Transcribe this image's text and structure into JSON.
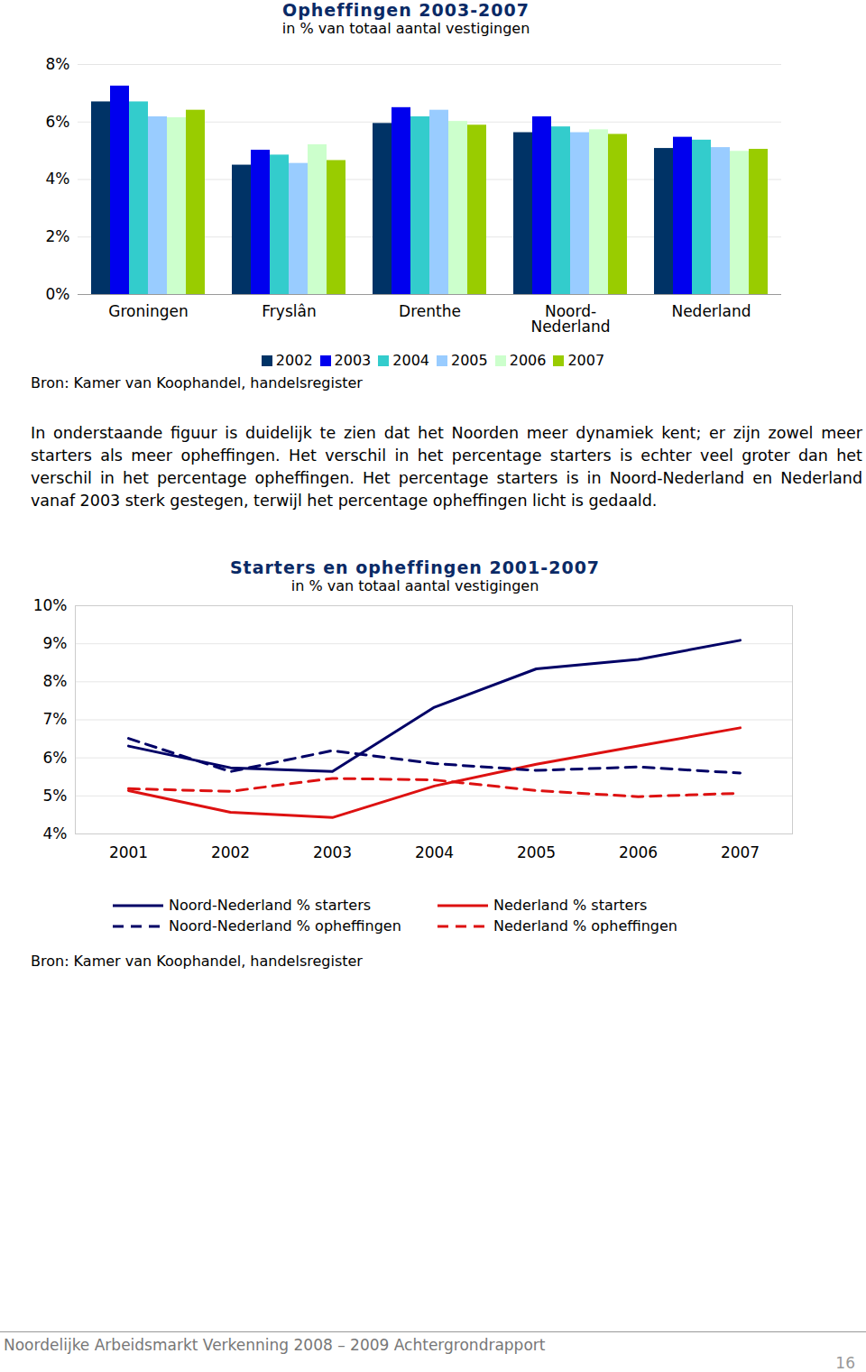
{
  "chart_data": [
    {
      "type": "bar",
      "title": "Opheffingen 2003-2007",
      "subtitle": "in % van totaal aantal vestigingen",
      "source": "Bron: Kamer van Koophandel, handelsregister",
      "categories": [
        "Groningen",
        "Fryslân",
        "Drenthe",
        "Noord-\nNederland",
        "Nederland"
      ],
      "series": [
        {
          "name": "2002",
          "color": "#003366",
          "values": [
            6.7,
            4.5,
            5.95,
            5.63,
            5.08
          ]
        },
        {
          "name": "2003",
          "color": "#0000ee",
          "values": [
            7.25,
            5.02,
            6.5,
            6.18,
            5.47
          ]
        },
        {
          "name": "2004",
          "color": "#33cccc",
          "values": [
            6.7,
            4.85,
            6.18,
            5.83,
            5.37
          ]
        },
        {
          "name": "2005",
          "color": "#99ccff",
          "values": [
            6.18,
            4.56,
            6.41,
            5.63,
            5.11
          ]
        },
        {
          "name": "2006",
          "color": "#ccffcc",
          "values": [
            6.15,
            5.21,
            6.02,
            5.73,
            4.98
          ]
        },
        {
          "name": "2007",
          "color": "#99cc00",
          "values": [
            6.41,
            4.66,
            5.89,
            5.57,
            5.05
          ]
        }
      ],
      "ylim": [
        0,
        8
      ],
      "yticks": [
        {
          "value": 0,
          "label": "0%"
        },
        {
          "value": 2,
          "label": "2%"
        },
        {
          "value": 4,
          "label": "4%"
        },
        {
          "value": 6,
          "label": "6%"
        },
        {
          "value": 8,
          "label": "8%"
        }
      ],
      "grid": true,
      "legend": "bottom"
    },
    {
      "type": "line",
      "title": "Starters en opheffingen 2001-2007",
      "subtitle": "in % van totaal aantal vestigingen",
      "source": "Bron: Kamer van Koophandel, handelsregister",
      "categories": [
        "2001",
        "2002",
        "2003",
        "2004",
        "2005",
        "2006",
        "2007"
      ],
      "series": [
        {
          "name": "Noord-Nederland % starters",
          "color": "#000066",
          "line_style": "solid",
          "values": [
            6.31,
            5.74,
            5.64,
            7.33,
            8.34,
            8.59,
            9.09
          ]
        },
        {
          "name": "Nederland % starters",
          "color": "#dd1111",
          "line_style": "solid",
          "values": [
            5.14,
            4.57,
            4.43,
            5.26,
            5.83,
            6.31,
            6.79
          ]
        },
        {
          "name": "Noord-Nederland % opheffingen",
          "color": "#000066",
          "line_style": "dashed",
          "values": [
            6.51,
            5.64,
            6.19,
            5.85,
            5.67,
            5.76,
            5.6
          ]
        },
        {
          "name": "Nederland % opheffingen",
          "color": "#dd1111",
          "line_style": "dashed",
          "values": [
            5.19,
            5.12,
            5.46,
            5.42,
            5.14,
            4.98,
            5.07
          ]
        }
      ],
      "ylim": [
        4,
        10
      ],
      "yticks": [
        {
          "value": 4,
          "label": "4%"
        },
        {
          "value": 5,
          "label": "5%"
        },
        {
          "value": 6,
          "label": "6%"
        },
        {
          "value": 7,
          "label": "7%"
        },
        {
          "value": 8,
          "label": "8%"
        },
        {
          "value": 9,
          "label": "9%"
        },
        {
          "value": 10,
          "label": "10%"
        }
      ],
      "grid": true,
      "legend": "bottom"
    }
  ],
  "paragraph": "In onderstaande figuur is duidelijk te zien dat het Noorden meer dynamiek kent; er zijn zowel meer starters als meer opheffingen. Het verschil in het percentage starters is echter veel groter dan het verschil in het percentage opheffingen. Het percentage starters is in Noord-Nederland en Nederland vanaf 2003 sterk gestegen, terwijl het percentage opheffingen licht is gedaald.",
  "footer": "Noordelijke Arbeidsmarkt Verkenning 2008 – 2009 Achtergrondrapport",
  "page_number": "16"
}
